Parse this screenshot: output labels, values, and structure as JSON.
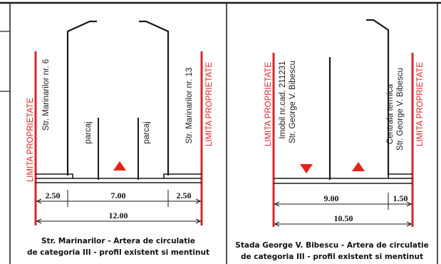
{
  "left_panel": {
    "property_limit_left": "LIMITA PROPRIETATE",
    "property_limit_right": "LIMITA PROPRIETATE",
    "street_left": "Str. Marinarilor nr. 6",
    "street_right": "Str. Marinarilor nr. 13",
    "parking_left": "parcaj",
    "parking_right": "parcaj",
    "dim_sidewalk_left": "2.50",
    "dim_roadway": "7.00",
    "dim_sidewalk_right": "2.50",
    "dim_total": "12.00",
    "caption_line1": "Str. Marinarilor - Artera de circulatie",
    "caption_line2": "de categoria III - profil existent si mentinut"
  },
  "right_panel": {
    "property_limit_left": "LIMITA PROPRIETATE",
    "property_limit_right": "LIMITA PROPRIETATE",
    "building_left_line1": "Imobil nr.cad. 211231",
    "building_left_line2": "Str. George V. Bibescu",
    "building_right_line1": "Centrala termica",
    "building_right_line2": "Str. George V. Bibescu",
    "dim_roadway": "9.00",
    "dim_sidewalk": "1.50",
    "dim_total": "10.50",
    "caption_line1": "Stada George V. Bibescu - Artera de circulatie",
    "caption_line2": "de categoria III -  profil existent si mentinut"
  },
  "colors": {
    "property_line": "#d9262b",
    "direction_arrow": "#e2231a",
    "linework": "#1a1a1a"
  }
}
